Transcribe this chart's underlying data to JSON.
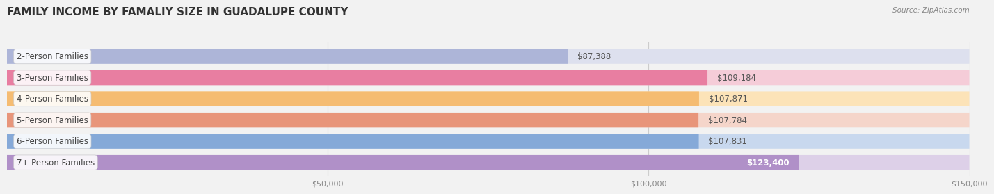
{
  "title": "FAMILY INCOME BY FAMALIY SIZE IN GUADALUPE COUNTY",
  "source": "Source: ZipAtlas.com",
  "categories": [
    "2-Person Families",
    "3-Person Families",
    "4-Person Families",
    "5-Person Families",
    "6-Person Families",
    "7+ Person Families"
  ],
  "values": [
    87388,
    109184,
    107871,
    107784,
    107831,
    123400
  ],
  "bar_colors": [
    "#adb5d8",
    "#e87ea1",
    "#f5bc72",
    "#e8957a",
    "#85a9d8",
    "#b090c8"
  ],
  "bar_bg_colors": [
    "#dde0ee",
    "#f5ccd8",
    "#fce3b8",
    "#f5d5ca",
    "#c8d8ee",
    "#ddd0e8"
  ],
  "value_labels": [
    "$87,388",
    "$109,184",
    "$107,871",
    "$107,784",
    "$107,831",
    "$123,400"
  ],
  "label_inside": [
    false,
    false,
    false,
    false,
    false,
    true
  ],
  "xlim": [
    0,
    150000
  ],
  "xtick_values": [
    50000,
    100000,
    150000
  ],
  "xtick_labels": [
    "$50,000",
    "$100,000",
    "$150,000"
  ],
  "background_color": "#f2f2f2",
  "title_fontsize": 11,
  "label_fontsize": 8.5,
  "value_fontsize": 8.5,
  "bar_height": 0.62
}
